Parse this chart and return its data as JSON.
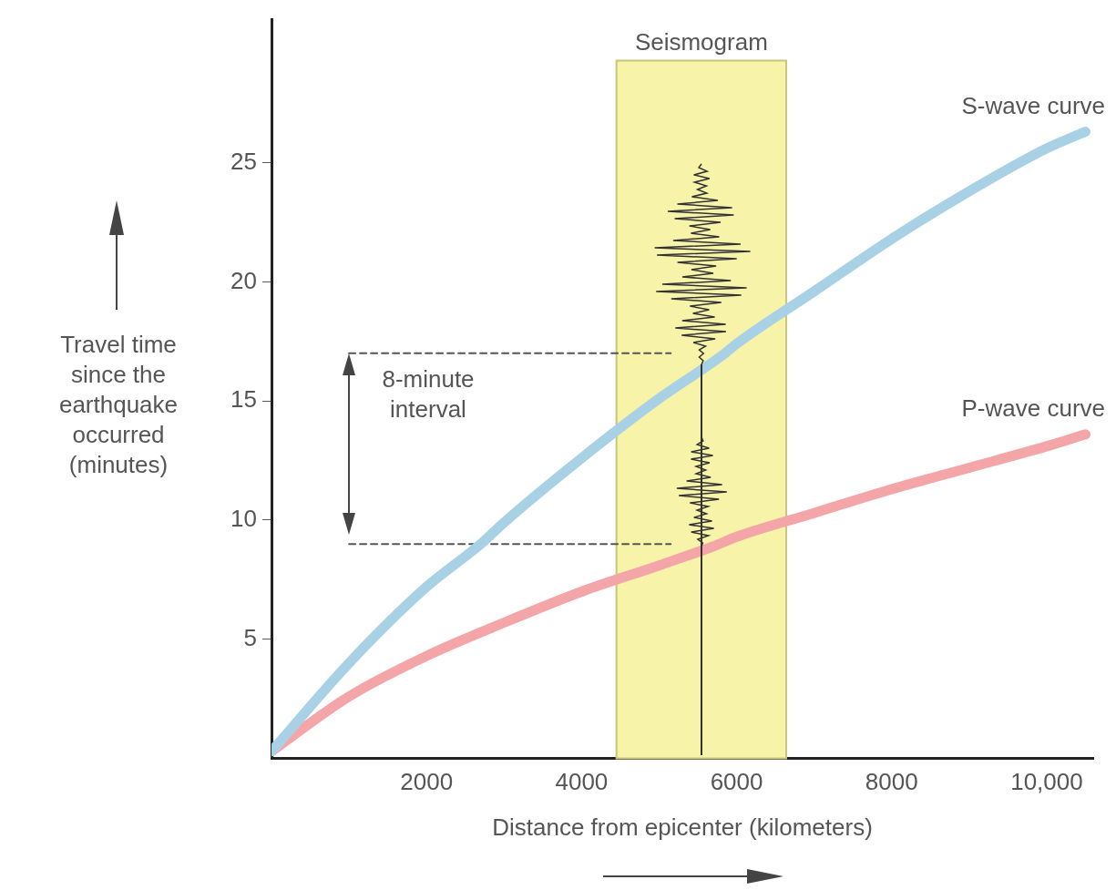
{
  "chart_data": {
    "type": "line",
    "xlabel": "Distance from epicenter (kilometers)",
    "ylabel": "Travel time since the earthquake occurred (minutes)",
    "xlim": [
      0,
      10600
    ],
    "ylim": [
      0,
      31
    ],
    "xticks": [
      2000,
      4000,
      6000,
      8000,
      {
        "value": 10000,
        "label": "10,000"
      }
    ],
    "yticks": [
      5,
      10,
      15,
      20,
      25
    ],
    "grid": false,
    "legend": false,
    "marker": "none",
    "line_style": "solid",
    "bands": [
      {
        "axis": "x",
        "from": 4450,
        "to": 6640,
        "label": "Seismogram",
        "color": "#f7f3a8"
      }
    ],
    "annotations": [
      "8-minute interval"
    ],
    "series": [
      {
        "name": "S-wave curve",
        "color": "#a9d1e6",
        "x": [
          0,
          1000,
          2000,
          2700,
          3000,
          4000,
          5000,
          5850,
          6000,
          7000,
          8000,
          9000,
          10000,
          10500
        ],
        "values": [
          0.3,
          4.0,
          7.2,
          9.0,
          9.9,
          12.6,
          15.1,
          17.0,
          17.4,
          19.6,
          21.8,
          23.8,
          25.6,
          26.3
        ]
      },
      {
        "name": "P-wave curve",
        "color": "#f4a5a8",
        "x": [
          0,
          1000,
          2000,
          3000,
          4000,
          5000,
          5700,
          6000,
          7000,
          8000,
          9000,
          10000,
          10500
        ],
        "values": [
          0.3,
          2.6,
          4.3,
          5.7,
          7.0,
          8.1,
          8.9,
          9.3,
          10.3,
          11.3,
          12.2,
          13.1,
          13.6
        ]
      },
      {
        "type": "line",
        "line_style": "dashed",
        "color": "#555555",
        "x": [
          1000,
          5150
        ],
        "values": [
          17,
          17
        ]
      },
      {
        "type": "line",
        "line_style": "dashed",
        "color": "#555555",
        "x": [
          1000,
          5150
        ],
        "values": [
          9,
          9
        ]
      }
    ]
  }
}
